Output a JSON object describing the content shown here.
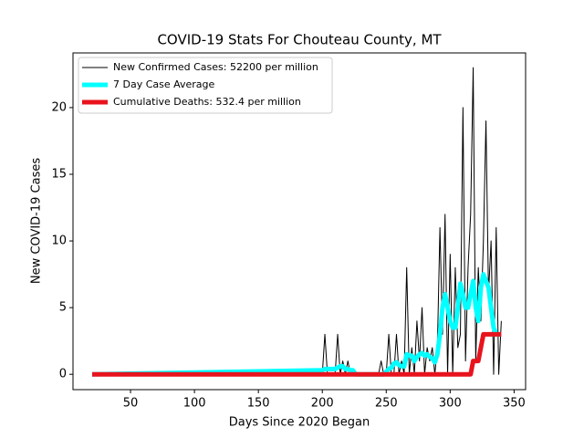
{
  "chart_data": {
    "type": "line",
    "title": "COVID-19 Stats For Chouteau County, MT",
    "xlabel": "Days Since 2020 Began",
    "ylabel": "New COVID-19 Cases",
    "x": [
      20,
      200,
      202,
      204,
      206,
      208,
      210,
      212,
      214,
      216,
      218,
      220,
      222,
      224,
      226,
      228,
      230,
      232,
      234,
      236,
      238,
      240,
      242,
      244,
      246,
      248,
      250,
      252,
      254,
      256,
      258,
      260,
      262,
      264,
      266,
      268,
      270,
      272,
      274,
      276,
      278,
      280,
      282,
      284,
      286,
      288,
      290,
      292,
      294,
      296,
      298,
      300,
      302,
      304,
      306,
      308,
      310,
      312,
      314,
      316,
      318,
      320,
      322,
      324,
      326,
      328,
      330,
      332,
      334,
      336,
      338,
      340
    ],
    "series": [
      {
        "name": "New Confirmed Cases: 52200 per million",
        "color": "#000000",
        "width": 1,
        "values": [
          0,
          0,
          3,
          0,
          0,
          0,
          0,
          3,
          0,
          1,
          0,
          1,
          0,
          0,
          0,
          0,
          0,
          0,
          0,
          0,
          0,
          0,
          0,
          0,
          1,
          0,
          0,
          3,
          0,
          0,
          3,
          0,
          1,
          0,
          8,
          0,
          2,
          0,
          4,
          1,
          5,
          0,
          2,
          1,
          2,
          0,
          2,
          11,
          3,
          12,
          0,
          9,
          0,
          8,
          2,
          3,
          20,
          1,
          8,
          12,
          23,
          1,
          8,
          4,
          10,
          19,
          6,
          10,
          0,
          11,
          0,
          4
        ]
      },
      {
        "name": "7 Day Case Average",
        "color": "#00ffff",
        "width": 5,
        "values": [
          0,
          0.3,
          0.4,
          0.4,
          0.4,
          0.4,
          0.4,
          0.5,
          0.6,
          0.6,
          0.4,
          0.4,
          0.3,
          0.3,
          0,
          0,
          0,
          0,
          0,
          0,
          0,
          0,
          0,
          0,
          0,
          0,
          0.2,
          0.4,
          0.5,
          0.8,
          0.9,
          0.7,
          0.6,
          0.6,
          1.5,
          1.4,
          1.4,
          1,
          1.3,
          1.5,
          1.6,
          1.4,
          1.5,
          1.3,
          1.2,
          0.9,
          1.5,
          3,
          5,
          6,
          5,
          4,
          3.5,
          3.5,
          5,
          6.8,
          6,
          5,
          5,
          6,
          7,
          5,
          4,
          6.5,
          7.5,
          7,
          6.5,
          5,
          3.5,
          3,
          3,
          3
        ]
      },
      {
        "name": "Cumulative Deaths: 532.4 per million",
        "color": "#e8131d",
        "width": 5,
        "values": [
          0,
          0,
          0,
          0,
          0,
          0,
          0,
          0,
          0,
          0,
          0,
          0,
          0,
          0,
          0,
          0,
          0,
          0,
          0,
          0,
          0,
          0,
          0,
          0,
          0,
          0,
          0,
          0,
          0,
          0,
          0,
          0,
          0,
          0,
          0,
          0,
          0,
          0,
          0,
          0,
          0,
          0,
          0,
          0,
          0,
          0,
          0,
          0,
          0,
          0,
          0,
          0,
          0,
          0,
          0,
          0,
          0,
          0,
          0,
          0,
          1,
          1,
          1,
          2,
          3,
          3,
          3,
          3,
          3,
          3,
          3,
          3
        ]
      }
    ],
    "xlim": [
      5,
      359
    ],
    "ylim": [
      -1.15,
      24.1
    ],
    "xticks": [
      50,
      100,
      150,
      200,
      250,
      300,
      350
    ],
    "yticks": [
      0,
      5,
      10,
      15,
      20
    ],
    "legend": "upper left"
  }
}
